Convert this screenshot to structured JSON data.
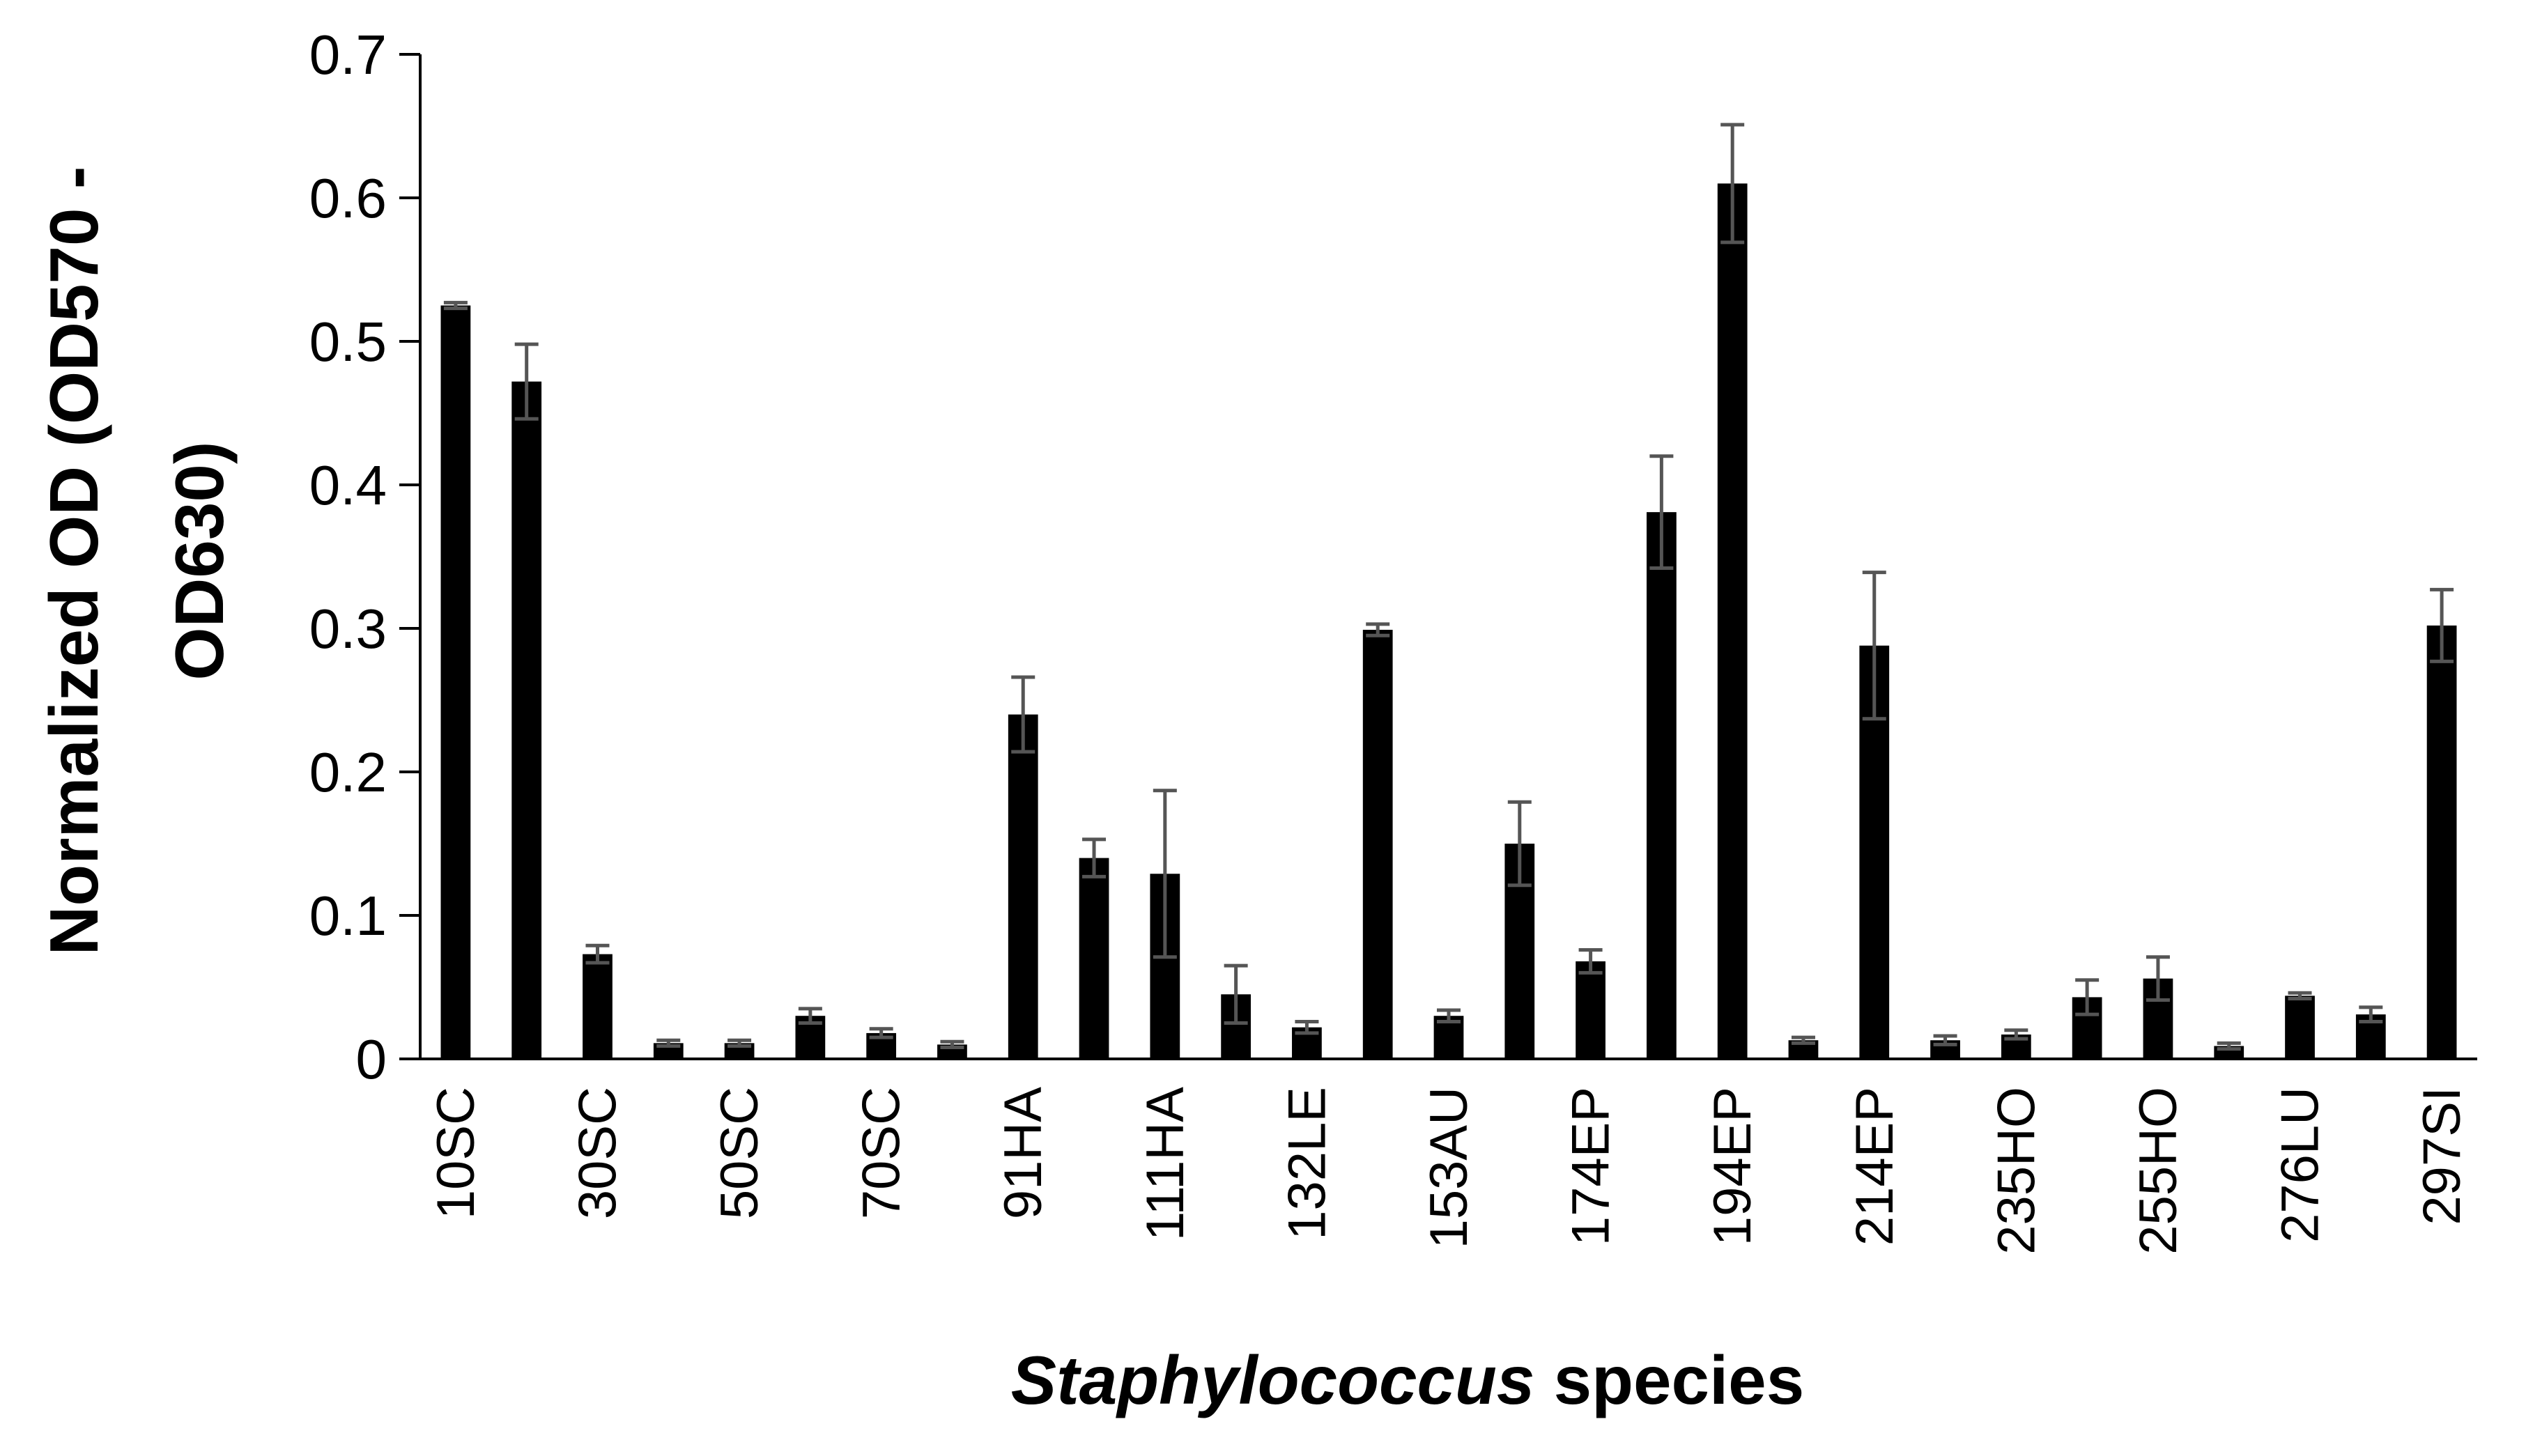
{
  "chart_data": {
    "type": "bar",
    "title": "",
    "ylabel": "Normalized OD (OD570 - OD630)",
    "ylabel_lines": [
      "Normalized OD (OD570 -",
      "OD630)"
    ],
    "xlabel_italic": "Staphylococcus",
    "xlabel_rest": " species",
    "ylim": [
      0,
      0.7
    ],
    "yticks": [
      0,
      0.1,
      0.2,
      0.3,
      0.4,
      0.5,
      0.6,
      0.7
    ],
    "ytick_labels": [
      "0",
      "0.1",
      "0.2",
      "0.3",
      "0.4",
      "0.5",
      "0.6",
      "0.7"
    ],
    "grid": false,
    "bar_color": "#000000",
    "error_color": "#555555",
    "categories": [
      "10SC",
      "",
      "30SC",
      "",
      "50SC",
      "",
      "70SC",
      "",
      "91HA",
      "",
      "111HA",
      "",
      "132LE",
      "",
      "153AU",
      "",
      "174EP",
      "",
      "194EP",
      "",
      "214EP",
      "",
      "235HO",
      "",
      "255HO",
      "",
      "276LU",
      "",
      "297SI"
    ],
    "values": [
      0.525,
      0.472,
      0.073,
      0.011,
      0.011,
      0.03,
      0.018,
      0.01,
      0.24,
      0.14,
      0.129,
      0.045,
      0.022,
      0.299,
      0.03,
      0.15,
      0.068,
      0.381,
      0.61,
      0.013,
      0.288,
      0.013,
      0.017,
      0.043,
      0.056,
      0.009,
      0.044,
      0.031,
      0.302
    ],
    "errors": [
      0.002,
      0.026,
      0.006,
      0.002,
      0.002,
      0.005,
      0.003,
      0.002,
      0.026,
      0.013,
      0.058,
      0.02,
      0.004,
      0.004,
      0.004,
      0.029,
      0.008,
      0.039,
      0.041,
      0.002,
      0.051,
      0.003,
      0.003,
      0.012,
      0.015,
      0.002,
      0.002,
      0.005,
      0.025
    ]
  }
}
